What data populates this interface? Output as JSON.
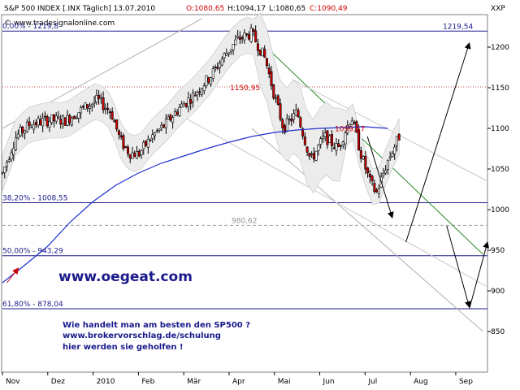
{
  "header": {
    "symbol": "S&P 500 INDEX [.INX Täglich] 13.07.2010",
    "open_label": "O:1080,65",
    "high_label": "H:1094,17",
    "low_label": "L:1080,65",
    "close_label": "C:1090,49",
    "right_label": "XXP",
    "source": "© www.tradesignalonline.com",
    "colors": {
      "text": "#000000",
      "close": "#cc0000"
    }
  },
  "annotations": {
    "website": "www.oegeat.com",
    "promo_lines": [
      "Wie handelt man am besten den SP500 ?",
      "www.brokervorschlag.de/schulung",
      "hier werden sie geholfen !"
    ],
    "callouts": [
      {
        "text": "1150,95",
        "value": 1150.95,
        "color": "#cc0000"
      },
      {
        "text": "1099,57",
        "value": 1099.57,
        "color": "#cc0000"
      },
      {
        "text": "980,62",
        "value": 980.62,
        "color": "#909090"
      },
      {
        "text": "1219,54",
        "value": 1219.54,
        "color": "#1a1a8c"
      }
    ]
  },
  "chart_data": {
    "type": "candlestick",
    "title": "S&P 500 INDEX [.INX Täglich] 13.07.2010",
    "ylim": [
      800,
      1240
    ],
    "y_ticks": [
      850,
      900,
      950,
      1000,
      1050,
      1100,
      1150,
      1200
    ],
    "y_tick_labels": [
      "850",
      "900",
      "950",
      "1000",
      "1050",
      "1100",
      "1150",
      "1200"
    ],
    "x_range_months": [
      0,
      10.7
    ],
    "x_ticks": [
      {
        "label": "Nov",
        "month": 0
      },
      {
        "label": "Dez",
        "month": 1
      },
      {
        "label": "2010",
        "month": 2
      },
      {
        "label": "Feb",
        "month": 3
      },
      {
        "label": "Mär",
        "month": 4
      },
      {
        "label": "Apr",
        "month": 5
      },
      {
        "label": "Mai",
        "month": 6
      },
      {
        "label": "Jun",
        "month": 7
      },
      {
        "label": "Jul",
        "month": 8
      },
      {
        "label": "Aug",
        "month": 9
      },
      {
        "label": "Sep",
        "month": 10
      }
    ],
    "grid": false,
    "price_path": [
      [
        0.0,
        1045
      ],
      [
        0.3,
        1090
      ],
      [
        0.6,
        1105
      ],
      [
        1.0,
        1110
      ],
      [
        1.4,
        1110
      ],
      [
        1.8,
        1125
      ],
      [
        2.1,
        1135
      ],
      [
        2.4,
        1120
      ],
      [
        2.6,
        1085
      ],
      [
        2.8,
        1070
      ],
      [
        3.0,
        1068
      ],
      [
        3.3,
        1090
      ],
      [
        3.6,
        1105
      ],
      [
        3.9,
        1125
      ],
      [
        4.2,
        1140
      ],
      [
        4.6,
        1165
      ],
      [
        4.9,
        1190
      ],
      [
        5.2,
        1210
      ],
      [
        5.5,
        1217
      ],
      [
        5.8,
        1185
      ],
      [
        6.0,
        1140
      ],
      [
        6.2,
        1100
      ],
      [
        6.5,
        1120
      ],
      [
        6.8,
        1060
      ],
      [
        7.1,
        1090
      ],
      [
        7.4,
        1075
      ],
      [
        7.7,
        1115
      ],
      [
        7.9,
        1070
      ],
      [
        8.1,
        1035
      ],
      [
        8.25,
        1020
      ],
      [
        8.5,
        1060
      ],
      [
        8.75,
        1090
      ]
    ],
    "moving_average": [
      [
        0.0,
        910
      ],
      [
        0.5,
        932
      ],
      [
        1.0,
        955
      ],
      [
        1.5,
        985
      ],
      [
        2.0,
        1010
      ],
      [
        2.5,
        1030
      ],
      [
        3.0,
        1045
      ],
      [
        3.5,
        1057
      ],
      [
        4.0,
        1066
      ],
      [
        4.5,
        1075
      ],
      [
        5.0,
        1083
      ],
      [
        5.5,
        1090
      ],
      [
        6.0,
        1095
      ],
      [
        6.5,
        1098
      ],
      [
        7.0,
        1100
      ],
      [
        7.5,
        1101
      ],
      [
        8.0,
        1102
      ],
      [
        8.5,
        1100
      ]
    ],
    "fib_levels": [
      {
        "label": "0,00% - 1219,8",
        "value": 1219.8
      },
      {
        "label": "38,20% - 1008,55",
        "value": 1008.55
      },
      {
        "label": "50,00% - 943,29",
        "value": 943.29
      },
      {
        "label": "61,80% - 878,04",
        "value": 878.04
      }
    ],
    "dotted_levels": [
      1150.95,
      980.62
    ],
    "trend_lines": [
      {
        "name": "resistance",
        "color": "#2a8a2a",
        "from": [
          5.5,
          1217
        ],
        "to": [
          10.6,
          945
        ]
      },
      {
        "name": "channel-upper",
        "color": "#b0b0b0",
        "from": [
          0.0,
          1100
        ],
        "to": [
          4.4,
          1235
        ]
      },
      {
        "name": "channel-lower",
        "color": "#b0b0b0",
        "from": [
          5.5,
          1100
        ],
        "to": [
          10.6,
          850
        ]
      }
    ],
    "forecast_arrows": [
      {
        "from": [
          8.05,
          1090
        ],
        "to": [
          8.6,
          990
        ]
      },
      {
        "from": [
          8.9,
          960
        ],
        "to": [
          10.3,
          1205
        ]
      },
      {
        "from": [
          9.8,
          980
        ],
        "to": [
          10.3,
          880
        ]
      },
      {
        "from": [
          10.3,
          878
        ],
        "to": [
          10.7,
          960
        ]
      }
    ],
    "left_arrow": {
      "from": [
        0.1,
        910
      ],
      "to": [
        0.35,
        928
      ],
      "color": "#cc0000"
    }
  }
}
